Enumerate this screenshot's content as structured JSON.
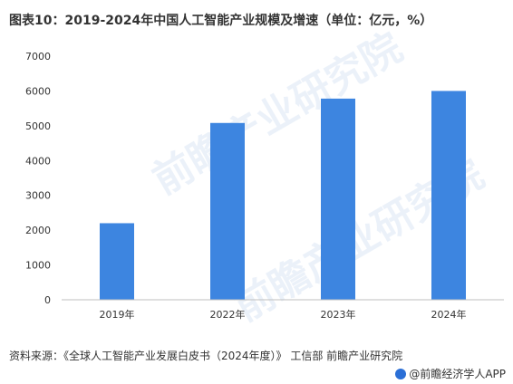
{
  "title": "图表10：2019-2024年中国人工智能产业规模及增速（单位：亿元，%）",
  "source": "资料来源：《全球人工智能产业发展白皮书（2024年度）》 工信部 前瞻产业研究院",
  "brand": "@前瞻经济学人APP",
  "watermark": "前瞻产业研究院",
  "colors": {
    "bar": "#3d85e0",
    "axis": "#bfbfbf",
    "text": "#333333"
  },
  "chart_data": {
    "type": "bar",
    "categories": [
      "2019年",
      "2022年",
      "2023年",
      "2024年"
    ],
    "values": [
      2200,
      5080,
      5780,
      6000
    ],
    "ylim": [
      0,
      7000
    ],
    "yticks": [
      0,
      1000,
      2000,
      3000,
      4000,
      5000,
      6000,
      7000
    ],
    "grid": false,
    "xlabel": "",
    "ylabel": ""
  }
}
